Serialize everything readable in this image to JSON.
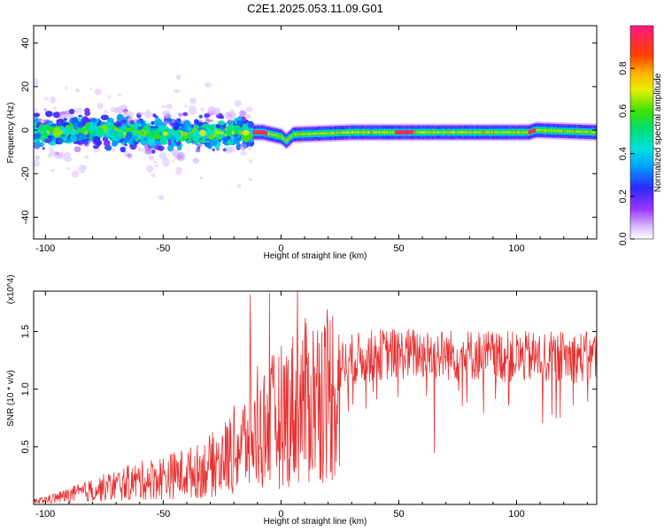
{
  "chart_data": [
    {
      "type": "heatmap",
      "title": "C2E1.2025.053.11.09.G01",
      "xlabel": "Height of straight line (km)",
      "ylabel": "Frequency (Hz)",
      "xlim": [
        -105,
        134
      ],
      "ylim": [
        -50,
        48
      ],
      "xticks": [
        -100,
        -50,
        0,
        50,
        100
      ],
      "yticks": [
        -40,
        -20,
        0,
        20,
        40
      ],
      "colorbar": {
        "label": "Normalized spectral amplitude",
        "range": [
          0.0,
          1.0
        ],
        "ticks": [
          0.0,
          0.2,
          0.4,
          0.6,
          0.8
        ]
      },
      "ridge": [
        {
          "x": -105,
          "y": -1
        },
        {
          "x": -80,
          "y": 0
        },
        {
          "x": -50,
          "y": -2
        },
        {
          "x": -15,
          "y": -1
        },
        {
          "x": -8,
          "y": -1
        },
        {
          "x": 0,
          "y": -3
        },
        {
          "x": 2,
          "y": -5
        },
        {
          "x": 5,
          "y": -2
        },
        {
          "x": 30,
          "y": -1
        },
        {
          "x": 60,
          "y": -1
        },
        {
          "x": 105,
          "y": -1
        },
        {
          "x": 108,
          "y": 0
        },
        {
          "x": 134,
          "y": -1
        }
      ],
      "noisy_region": [
        -105,
        -12
      ],
      "peak_segments": [
        [
          -12,
          -6
        ],
        [
          48,
          56
        ],
        [
          105,
          108
        ]
      ]
    },
    {
      "type": "line",
      "xlabel": "Height of straight line (km)",
      "ylabel": "SNR (10 * v/v)",
      "scale_note": "(x10^4)",
      "xlim": [
        -105,
        134
      ],
      "ylim": [
        0.0,
        1.85
      ],
      "xticks": [
        -100,
        -50,
        0,
        50,
        100
      ],
      "yticks": [
        0.5,
        1.0,
        1.5
      ],
      "color": "#e83030",
      "series": [
        {
          "x": [
            -105,
            -95,
            -85,
            -75,
            -65,
            -55,
            -45,
            -35,
            -25,
            -20,
            -15,
            -10,
            -5,
            0,
            5,
            10,
            15,
            20,
            25,
            30,
            40,
            50,
            60,
            70,
            80,
            90,
            100,
            110,
            120,
            134
          ],
          "values": [
            0.03,
            0.07,
            0.12,
            0.17,
            0.22,
            0.26,
            0.3,
            0.34,
            0.45,
            0.55,
            0.64,
            0.72,
            0.82,
            0.9,
            0.98,
            1.04,
            1.1,
            1.16,
            1.22,
            1.28,
            1.32,
            1.33,
            1.33,
            1.32,
            1.32,
            1.31,
            1.3,
            1.3,
            1.3,
            1.3
          ]
        }
      ],
      "spikes": [
        {
          "x": -13,
          "y": 1.82
        },
        {
          "x": -10,
          "y": 1.2
        },
        {
          "x": -5,
          "y": 1.83
        },
        {
          "x": 7,
          "y": 1.86
        },
        {
          "x": 65,
          "y": 0.45
        }
      ]
    }
  ]
}
